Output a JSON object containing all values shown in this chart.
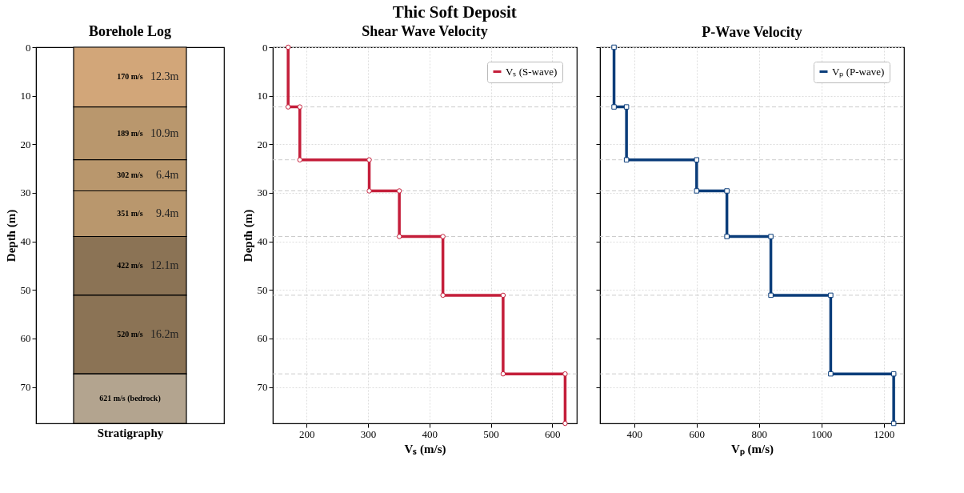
{
  "chart_data": [
    {
      "type": "bar",
      "title": "Borehole Log",
      "annotations": [
        "Thic Soft Deposit"
      ],
      "xlabel": "Stratigraphy",
      "ylabel": "Depth (m)",
      "categories": [
        null
      ],
      "stacked": true,
      "ylim": [
        77.5,
        0
      ],
      "yticks": [
        0,
        10,
        20,
        30,
        40,
        50,
        60,
        70
      ],
      "series": [
        {
          "name": "170 m/s",
          "color": "#d2a679",
          "values": [
            12.3
          ],
          "value_labels": [
            "12.3m"
          ]
        },
        {
          "name": "189 m/s",
          "color": "#b9976d",
          "values": [
            10.9
          ],
          "value_labels": [
            "10.9m"
          ]
        },
        {
          "name": "302 m/s",
          "color": "#b9976d",
          "values": [
            6.4
          ],
          "value_labels": [
            "6.4m"
          ]
        },
        {
          "name": "351 m/s",
          "color": "#b9976d",
          "values": [
            9.4
          ],
          "value_labels": [
            "9.4m"
          ]
        },
        {
          "name": "422 m/s",
          "color": "#8b7355",
          "values": [
            12.1
          ],
          "value_labels": [
            "12.1m"
          ]
        },
        {
          "name": "520 m/s",
          "color": "#8b7355",
          "values": [
            16.2
          ],
          "value_labels": [
            "16.2m"
          ]
        },
        {
          "name": "621 m/s (bedrock)",
          "color": "#b3a48f",
          "values": [
            10.2
          ],
          "value_labels": [
            null
          ]
        }
      ]
    },
    {
      "type": "line",
      "title": "Shear Wave Velocity",
      "xlabel": "Vₛ (m/s)",
      "ylabel": "Depth (m)",
      "xlim": [
        145,
        640
      ],
      "xticks": [
        200,
        300,
        400,
        500,
        600
      ],
      "ylim": [
        77.5,
        0
      ],
      "yticks": [
        0,
        10,
        20,
        30,
        40,
        50,
        60,
        70
      ],
      "grid": true,
      "legend": "top right",
      "marker": "circle",
      "line_style": "solid",
      "series": [
        {
          "name": "Vₛ (S-wave)",
          "color": "#c41e3a",
          "x": [
            170,
            170,
            189,
            189,
            302,
            302,
            351,
            351,
            422,
            422,
            520,
            520,
            621,
            621
          ],
          "values": [
            0,
            12.3,
            12.3,
            23.2,
            23.2,
            29.6,
            29.6,
            39.0,
            39.0,
            51.1,
            51.1,
            67.3,
            67.3,
            77.5
          ]
        }
      ],
      "ref_lines": [
        {
          "axis": "y",
          "value": 12.3,
          "color": "#cccccc",
          "line_style": "dashed"
        },
        {
          "axis": "y",
          "value": 23.2,
          "color": "#cccccc",
          "line_style": "dashed"
        },
        {
          "axis": "y",
          "value": 29.6,
          "color": "#cccccc",
          "line_style": "dashed"
        },
        {
          "axis": "y",
          "value": 39.0,
          "color": "#cccccc",
          "line_style": "dashed"
        },
        {
          "axis": "y",
          "value": 51.1,
          "color": "#cccccc",
          "line_style": "dashed"
        },
        {
          "axis": "y",
          "value": 67.3,
          "color": "#cccccc",
          "line_style": "dashed"
        }
      ]
    },
    {
      "type": "line",
      "title": "P-Wave Velocity",
      "xlabel": "Vₚ (m/s)",
      "xlim": [
        290,
        1265
      ],
      "xticks": [
        400,
        600,
        800,
        1000,
        1200
      ],
      "ylim": [
        77.5,
        0
      ],
      "yticks": [
        0,
        10,
        20,
        30,
        40,
        50,
        60,
        70
      ],
      "tick_labels": "x",
      "grid": true,
      "legend": "top right",
      "marker": "square",
      "line_style": "solid",
      "series": [
        {
          "name": "Vₚ (P-wave)",
          "color": "#0b3d7a",
          "x": [
            335,
            335,
            375,
            375,
            600,
            600,
            697,
            697,
            838,
            838,
            1030,
            1030,
            1232,
            1232
          ],
          "values": [
            0,
            12.3,
            12.3,
            23.2,
            23.2,
            29.6,
            29.6,
            39.0,
            39.0,
            51.1,
            51.1,
            67.3,
            67.3,
            77.5
          ]
        }
      ],
      "ref_lines": [
        {
          "axis": "y",
          "value": 12.3,
          "color": "#cccccc",
          "line_style": "dashed"
        },
        {
          "axis": "y",
          "value": 23.2,
          "color": "#cccccc",
          "line_style": "dashed"
        },
        {
          "axis": "y",
          "value": 29.6,
          "color": "#cccccc",
          "line_style": "dashed"
        },
        {
          "axis": "y",
          "value": 39.0,
          "color": "#cccccc",
          "line_style": "dashed"
        },
        {
          "axis": "y",
          "value": 51.1,
          "color": "#cccccc",
          "line_style": "dashed"
        },
        {
          "axis": "y",
          "value": 67.3,
          "color": "#cccccc",
          "line_style": "dashed"
        }
      ]
    }
  ]
}
